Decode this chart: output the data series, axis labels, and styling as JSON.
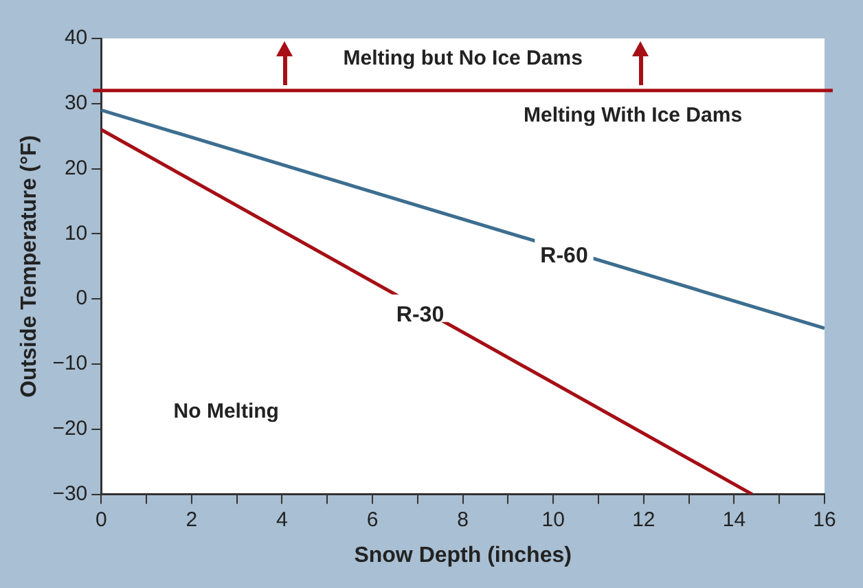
{
  "chart_data": {
    "type": "line",
    "xlabel": "Snow Depth (inches)",
    "ylabel": "Outside Temperature (°F)",
    "xlim": [
      0,
      16
    ],
    "ylim": [
      -30,
      40
    ],
    "xticks": [
      0,
      {
        "value": 1,
        "label": null
      },
      2,
      {
        "value": 3,
        "label": null
      },
      4,
      {
        "value": 5,
        "label": null
      },
      6,
      {
        "value": 7,
        "label": null
      },
      8,
      {
        "value": 9,
        "label": null
      },
      10,
      {
        "value": 11,
        "label": null
      },
      12,
      {
        "value": 13,
        "label": null
      },
      14,
      {
        "value": 15,
        "label": null
      },
      16
    ],
    "yticks": [
      -30,
      -20,
      -10,
      0,
      10,
      20,
      30,
      40
    ],
    "series": [
      {
        "name": "R-60",
        "color": "#3d6e90",
        "x": [
          0,
          16
        ],
        "values": [
          29,
          -4.5
        ]
      },
      {
        "name": "R-30",
        "color": "#a50f15",
        "x": [
          0,
          14.4
        ],
        "values": [
          26,
          -30
        ]
      }
    ],
    "ref_lines": [
      {
        "axis": "y",
        "value": 32,
        "color": "#a50f15"
      }
    ],
    "annotations": [
      "Melting but No Ice Dams",
      "Melting With Ice Dams",
      "No Melting"
    ],
    "grid": false,
    "legend": false,
    "marker": "none",
    "line_style": "solid"
  }
}
